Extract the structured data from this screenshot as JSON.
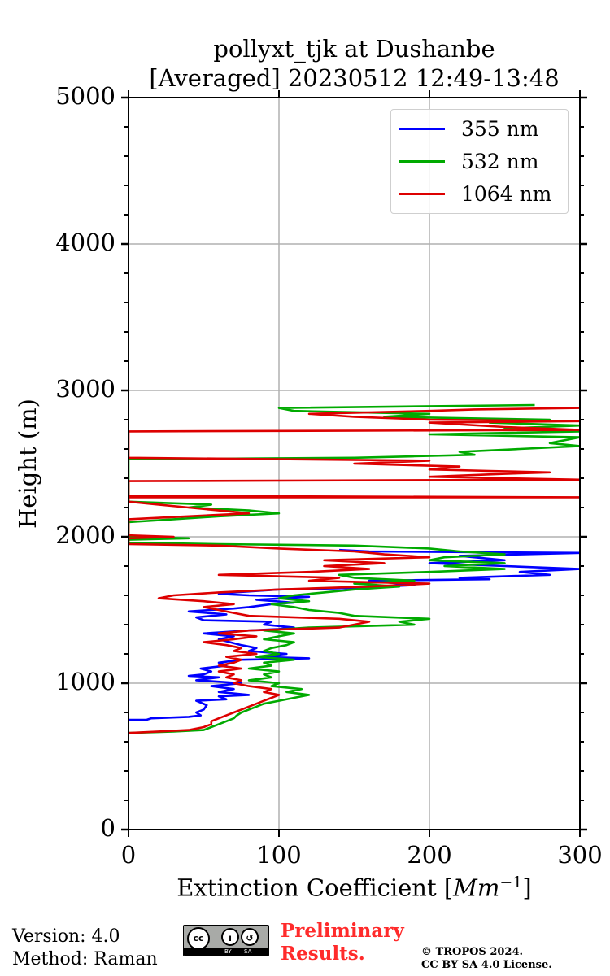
{
  "chart_data": {
    "type": "line",
    "title": "pollyxt_tjk at Dushanbe",
    "subtitle": "[Averaged] 20230512 12:49-13:48",
    "xlabel_prefix": "Extinction Coefficient [",
    "xlabel_unit": "Mm",
    "xlabel_exp": "−1",
    "xlabel_suffix": "]",
    "ylabel": "Height (m)",
    "xlim": [
      0,
      300
    ],
    "ylim": [
      0,
      5000
    ],
    "x_ticks": [
      "0",
      "100",
      "200",
      "300"
    ],
    "y_ticks": [
      "0",
      "1000",
      "2000",
      "3000",
      "4000",
      "5000"
    ],
    "grid": true,
    "legend_position": "top-right",
    "series": [
      {
        "name": "355 nm",
        "color": "#0000ff",
        "points": [
          [
            0,
            750
          ],
          [
            12,
            750
          ],
          [
            15,
            760
          ],
          [
            40,
            770
          ],
          [
            48,
            780
          ],
          [
            45,
            800
          ],
          [
            50,
            820
          ],
          [
            52,
            850
          ],
          [
            45,
            880
          ],
          [
            65,
            890
          ],
          [
            60,
            910
          ],
          [
            80,
            920
          ],
          [
            60,
            940
          ],
          [
            70,
            960
          ],
          [
            55,
            980
          ],
          [
            75,
            1000
          ],
          [
            45,
            1020
          ],
          [
            60,
            1040
          ],
          [
            40,
            1050
          ],
          [
            50,
            1060
          ],
          [
            55,
            1080
          ],
          [
            48,
            1100
          ],
          [
            65,
            1120
          ],
          [
            60,
            1140
          ],
          [
            75,
            1160
          ],
          [
            120,
            1170
          ],
          [
            85,
            1180
          ],
          [
            105,
            1200
          ],
          [
            80,
            1220
          ],
          [
            85,
            1240
          ],
          [
            75,
            1260
          ],
          [
            60,
            1300
          ],
          [
            70,
            1320
          ],
          [
            50,
            1340
          ],
          [
            80,
            1360
          ],
          [
            100,
            1370
          ],
          [
            110,
            1380
          ],
          [
            90,
            1400
          ],
          [
            95,
            1420
          ],
          [
            50,
            1430
          ],
          [
            45,
            1450
          ],
          [
            65,
            1470
          ],
          [
            40,
            1490
          ],
          [
            55,
            1500
          ],
          [
            70,
            1510
          ],
          [
            80,
            1520
          ],
          [
            95,
            1540
          ],
          [
            110,
            1550
          ],
          [
            85,
            1570
          ],
          [
            120,
            1590
          ],
          [
            80,
            1600
          ],
          [
            60,
            1610
          ],
          [
            70,
            1620
          ],
          [
            100,
            1640
          ],
          [
            150,
            1650
          ],
          [
            190,
            1670
          ],
          [
            160,
            1700
          ],
          [
            240,
            1710
          ],
          [
            220,
            1720
          ],
          [
            280,
            1740
          ],
          [
            260,
            1760
          ],
          [
            300,
            1780
          ],
          [
            250,
            1800
          ],
          [
            200,
            1820
          ],
          [
            250,
            1840
          ],
          [
            220,
            1870
          ],
          [
            300,
            1890
          ],
          [
            160,
            1900
          ],
          [
            140,
            1910
          ]
        ]
      },
      {
        "name": "532 nm",
        "color": "#00aa00",
        "points": [
          [
            0,
            660
          ],
          [
            30,
            670
          ],
          [
            50,
            680
          ],
          [
            55,
            700
          ],
          [
            60,
            720
          ],
          [
            65,
            740
          ],
          [
            70,
            760
          ],
          [
            72,
            780
          ],
          [
            75,
            800
          ],
          [
            80,
            820
          ],
          [
            85,
            840
          ],
          [
            90,
            860
          ],
          [
            100,
            880
          ],
          [
            110,
            900
          ],
          [
            120,
            920
          ],
          [
            105,
            940
          ],
          [
            115,
            960
          ],
          [
            95,
            980
          ],
          [
            100,
            1000
          ],
          [
            80,
            1020
          ],
          [
            95,
            1040
          ],
          [
            90,
            1060
          ],
          [
            100,
            1080
          ],
          [
            80,
            1100
          ],
          [
            95,
            1120
          ],
          [
            90,
            1140
          ],
          [
            110,
            1160
          ],
          [
            85,
            1180
          ],
          [
            100,
            1200
          ],
          [
            90,
            1220
          ],
          [
            95,
            1240
          ],
          [
            105,
            1260
          ],
          [
            110,
            1280
          ],
          [
            90,
            1300
          ],
          [
            100,
            1320
          ],
          [
            110,
            1340
          ],
          [
            90,
            1360
          ],
          [
            120,
            1380
          ],
          [
            190,
            1400
          ],
          [
            180,
            1420
          ],
          [
            200,
            1440
          ],
          [
            150,
            1460
          ],
          [
            140,
            1480
          ],
          [
            120,
            1500
          ],
          [
            110,
            1520
          ],
          [
            95,
            1540
          ],
          [
            120,
            1560
          ],
          [
            100,
            1580
          ],
          [
            110,
            1600
          ],
          [
            130,
            1620
          ],
          [
            150,
            1640
          ],
          [
            180,
            1660
          ],
          [
            150,
            1680
          ],
          [
            190,
            1700
          ],
          [
            150,
            1720
          ],
          [
            140,
            1740
          ],
          [
            200,
            1760
          ],
          [
            250,
            1780
          ],
          [
            210,
            1800
          ],
          [
            250,
            1820
          ],
          [
            200,
            1840
          ],
          [
            210,
            1860
          ],
          [
            250,
            1880
          ],
          [
            220,
            1900
          ],
          [
            200,
            1920
          ],
          [
            150,
            1940
          ],
          [
            60,
            1950
          ],
          [
            0,
            1960
          ],
          [
            0,
            1980
          ],
          [
            40,
            1990
          ],
          [
            0,
            2000
          ],
          [
            0,
            2100
          ],
          [
            30,
            2120
          ],
          [
            60,
            2140
          ],
          [
            100,
            2160
          ],
          [
            80,
            2180
          ],
          [
            40,
            2200
          ],
          [
            55,
            2220
          ],
          [
            0,
            2240
          ],
          [
            0,
            2530
          ],
          [
            80,
            2535
          ],
          [
            150,
            2540
          ],
          [
            190,
            2550
          ],
          [
            230,
            2560
          ],
          [
            220,
            2580
          ],
          [
            260,
            2600
          ],
          [
            300,
            2620
          ],
          [
            280,
            2640
          ],
          [
            290,
            2660
          ],
          [
            300,
            2680
          ],
          [
            200,
            2700
          ],
          [
            300,
            2720
          ],
          [
            250,
            2740
          ],
          [
            300,
            2760
          ],
          [
            240,
            2780
          ],
          [
            280,
            2800
          ],
          [
            170,
            2820
          ],
          [
            200,
            2840
          ],
          [
            110,
            2860
          ],
          [
            100,
            2880
          ],
          [
            270,
            2900
          ]
        ]
      },
      {
        "name": "1064 nm",
        "color": "#dd0000",
        "points": [
          [
            0,
            660
          ],
          [
            20,
            670
          ],
          [
            40,
            680
          ],
          [
            50,
            700
          ],
          [
            55,
            720
          ],
          [
            55,
            740
          ],
          [
            60,
            760
          ],
          [
            65,
            780
          ],
          [
            70,
            800
          ],
          [
            75,
            820
          ],
          [
            80,
            840
          ],
          [
            85,
            860
          ],
          [
            90,
            880
          ],
          [
            95,
            900
          ],
          [
            100,
            920
          ],
          [
            90,
            940
          ],
          [
            95,
            960
          ],
          [
            80,
            980
          ],
          [
            70,
            1000
          ],
          [
            75,
            1020
          ],
          [
            65,
            1040
          ],
          [
            70,
            1060
          ],
          [
            60,
            1080
          ],
          [
            75,
            1100
          ],
          [
            60,
            1120
          ],
          [
            70,
            1140
          ],
          [
            75,
            1160
          ],
          [
            65,
            1180
          ],
          [
            85,
            1200
          ],
          [
            70,
            1220
          ],
          [
            75,
            1240
          ],
          [
            65,
            1260
          ],
          [
            50,
            1280
          ],
          [
            70,
            1300
          ],
          [
            85,
            1320
          ],
          [
            60,
            1340
          ],
          [
            80,
            1360
          ],
          [
            140,
            1380
          ],
          [
            150,
            1400
          ],
          [
            160,
            1420
          ],
          [
            140,
            1440
          ],
          [
            80,
            1460
          ],
          [
            70,
            1480
          ],
          [
            60,
            1500
          ],
          [
            50,
            1520
          ],
          [
            70,
            1540
          ],
          [
            50,
            1560
          ],
          [
            20,
            1580
          ],
          [
            30,
            1600
          ],
          [
            60,
            1620
          ],
          [
            100,
            1640
          ],
          [
            160,
            1660
          ],
          [
            200,
            1680
          ],
          [
            120,
            1700
          ],
          [
            140,
            1720
          ],
          [
            60,
            1740
          ],
          [
            120,
            1760
          ],
          [
            160,
            1780
          ],
          [
            130,
            1800
          ],
          [
            170,
            1820
          ],
          [
            130,
            1840
          ],
          [
            200,
            1860
          ],
          [
            170,
            1880
          ],
          [
            150,
            1900
          ],
          [
            100,
            1920
          ],
          [
            60,
            1940
          ],
          [
            0,
            1950
          ],
          [
            0,
            1990
          ],
          [
            30,
            2000
          ],
          [
            0,
            2010
          ],
          [
            0,
            2120
          ],
          [
            40,
            2140
          ],
          [
            80,
            2160
          ],
          [
            60,
            2180
          ],
          [
            40,
            2200
          ],
          [
            20,
            2220
          ],
          [
            0,
            2240
          ],
          [
            0,
            2270
          ],
          [
            300,
            2270
          ],
          [
            0,
            2280
          ],
          [
            0,
            2380
          ],
          [
            300,
            2390
          ],
          [
            200,
            2410
          ],
          [
            250,
            2430
          ],
          [
            280,
            2440
          ],
          [
            240,
            2450
          ],
          [
            200,
            2460
          ],
          [
            220,
            2480
          ],
          [
            150,
            2500
          ],
          [
            200,
            2520
          ],
          [
            0,
            2540
          ],
          [
            0,
            2720
          ],
          [
            300,
            2730
          ],
          [
            250,
            2750
          ],
          [
            200,
            2780
          ],
          [
            300,
            2790
          ],
          [
            200,
            2800
          ],
          [
            150,
            2820
          ],
          [
            120,
            2840
          ],
          [
            200,
            2860
          ],
          [
            230,
            2870
          ],
          [
            300,
            2880
          ]
        ]
      }
    ],
    "footer": {
      "version": "Version: 4.0",
      "method": "Method: Raman",
      "preliminary_1": "Preliminary",
      "preliminary_2": "Results.",
      "copyright": "© TROPOS 2024.",
      "license": "CC BY SA 4.0 License.",
      "cc_by": "BY",
      "cc_sa": "SA"
    }
  }
}
